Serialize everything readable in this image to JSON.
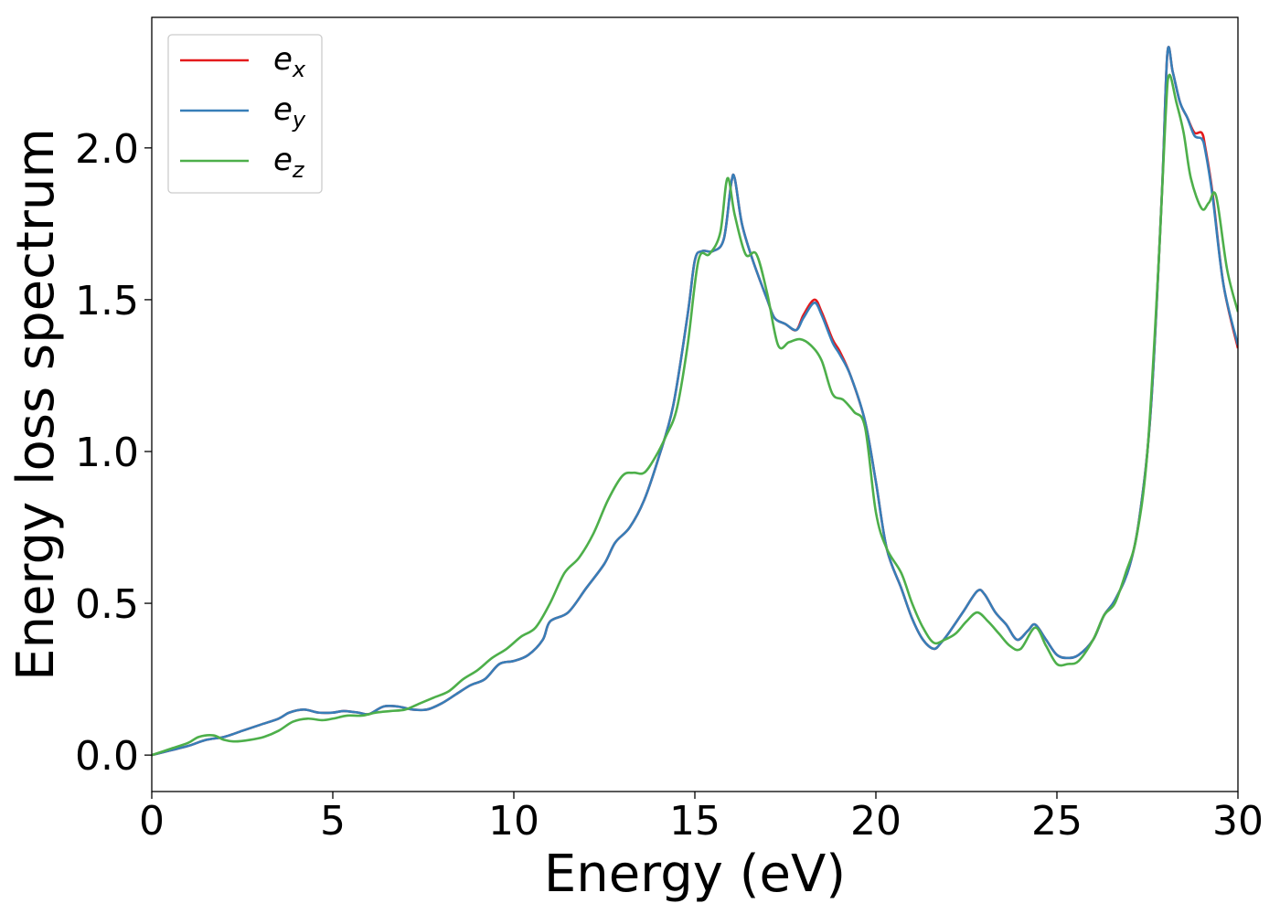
{
  "chart_data": {
    "type": "line",
    "title": "",
    "xlabel": "Energy (eV)",
    "ylabel": "Energy loss spectrum",
    "xlim": [
      0,
      30
    ],
    "ylim": [
      -0.12,
      2.43
    ],
    "xticks": [
      0,
      5,
      10,
      15,
      20,
      25,
      30
    ],
    "xtick_labels": [
      "0",
      "5",
      "10",
      "15",
      "20",
      "25",
      "30"
    ],
    "yticks": [
      0.0,
      0.5,
      1.0,
      1.5,
      2.0
    ],
    "ytick_labels": [
      "0.0",
      "0.5",
      "1.0",
      "1.5",
      "2.0"
    ],
    "grid": false,
    "legend_position": "top-left",
    "series": [
      {
        "name": "e_x",
        "legend_base": "e",
        "legend_sub": "x",
        "color": "#e41a1c",
        "x": [
          0,
          0.5,
          1,
          1.5,
          2,
          2.5,
          3,
          3.5,
          3.8,
          4.2,
          4.6,
          5,
          5.3,
          5.7,
          6,
          6.4,
          6.8,
          7.2,
          7.6,
          8,
          8.4,
          8.8,
          9.2,
          9.6,
          10,
          10.4,
          10.8,
          11,
          11.5,
          12,
          12.5,
          12.8,
          13.2,
          13.6,
          14,
          14.4,
          14.8,
          15,
          15.2,
          15.5,
          15.8,
          16,
          16.1,
          16.3,
          16.6,
          17,
          17.2,
          17.5,
          17.8,
          18,
          18.3,
          18.5,
          18.8,
          19,
          19.3,
          19.7,
          20,
          20.3,
          20.7,
          21,
          21.3,
          21.6,
          21.8,
          22,
          22.4,
          22.8,
          23,
          23.3,
          23.6,
          23.9,
          24.2,
          24.4,
          24.7,
          25,
          25.3,
          25.6,
          26,
          26.3,
          26.6,
          27,
          27.3,
          27.6,
          27.9,
          28.05,
          28.2,
          28.4,
          28.6,
          28.8,
          29,
          29.1,
          29.3,
          29.6,
          30
        ],
        "y": [
          0,
          0.015,
          0.03,
          0.05,
          0.06,
          0.08,
          0.1,
          0.12,
          0.14,
          0.15,
          0.14,
          0.14,
          0.145,
          0.14,
          0.135,
          0.16,
          0.16,
          0.15,
          0.15,
          0.17,
          0.2,
          0.23,
          0.25,
          0.3,
          0.31,
          0.33,
          0.38,
          0.44,
          0.47,
          0.55,
          0.63,
          0.7,
          0.75,
          0.84,
          0.98,
          1.15,
          1.45,
          1.63,
          1.66,
          1.66,
          1.7,
          1.88,
          1.9,
          1.75,
          1.63,
          1.5,
          1.44,
          1.42,
          1.4,
          1.45,
          1.5,
          1.46,
          1.37,
          1.33,
          1.25,
          1.1,
          0.9,
          0.68,
          0.55,
          0.45,
          0.38,
          0.35,
          0.37,
          0.4,
          0.47,
          0.54,
          0.53,
          0.47,
          0.43,
          0.38,
          0.41,
          0.43,
          0.38,
          0.33,
          0.32,
          0.33,
          0.38,
          0.46,
          0.51,
          0.62,
          0.8,
          1.15,
          1.85,
          2.31,
          2.25,
          2.15,
          2.1,
          2.05,
          2.05,
          2.0,
          1.85,
          1.55,
          1.34
        ]
      },
      {
        "name": "e_y",
        "legend_base": "e",
        "legend_sub": "y",
        "color": "#377eb8",
        "x": [
          0,
          0.5,
          1,
          1.5,
          2,
          2.5,
          3,
          3.5,
          3.8,
          4.2,
          4.6,
          5,
          5.3,
          5.7,
          6,
          6.4,
          6.8,
          7.2,
          7.6,
          8,
          8.4,
          8.8,
          9.2,
          9.6,
          10,
          10.4,
          10.8,
          11,
          11.5,
          12,
          12.5,
          12.8,
          13.2,
          13.6,
          14,
          14.4,
          14.8,
          15,
          15.2,
          15.5,
          15.8,
          16,
          16.1,
          16.3,
          16.6,
          17,
          17.2,
          17.5,
          17.8,
          18,
          18.3,
          18.5,
          18.8,
          19,
          19.3,
          19.7,
          20,
          20.3,
          20.7,
          21,
          21.3,
          21.6,
          21.8,
          22,
          22.4,
          22.8,
          23,
          23.3,
          23.6,
          23.9,
          24.2,
          24.4,
          24.7,
          25,
          25.3,
          25.6,
          26,
          26.3,
          26.6,
          27,
          27.3,
          27.6,
          27.9,
          28.05,
          28.2,
          28.4,
          28.6,
          28.8,
          29,
          29.1,
          29.3,
          29.6,
          30
        ],
        "y": [
          0,
          0.015,
          0.03,
          0.05,
          0.06,
          0.08,
          0.1,
          0.12,
          0.14,
          0.15,
          0.14,
          0.14,
          0.145,
          0.14,
          0.135,
          0.16,
          0.16,
          0.15,
          0.15,
          0.17,
          0.2,
          0.23,
          0.25,
          0.3,
          0.31,
          0.33,
          0.38,
          0.44,
          0.47,
          0.55,
          0.63,
          0.7,
          0.75,
          0.84,
          0.98,
          1.15,
          1.45,
          1.63,
          1.66,
          1.66,
          1.7,
          1.88,
          1.9,
          1.75,
          1.63,
          1.5,
          1.44,
          1.42,
          1.4,
          1.44,
          1.49,
          1.45,
          1.36,
          1.32,
          1.25,
          1.1,
          0.9,
          0.68,
          0.55,
          0.45,
          0.38,
          0.35,
          0.37,
          0.4,
          0.47,
          0.54,
          0.53,
          0.47,
          0.43,
          0.38,
          0.41,
          0.43,
          0.38,
          0.33,
          0.32,
          0.33,
          0.38,
          0.46,
          0.51,
          0.62,
          0.8,
          1.15,
          1.85,
          2.31,
          2.25,
          2.15,
          2.1,
          2.04,
          2.03,
          1.99,
          1.84,
          1.55,
          1.35
        ]
      },
      {
        "name": "e_z",
        "legend_base": "e",
        "legend_sub": "z",
        "color": "#4daf4a",
        "x": [
          0,
          0.5,
          1,
          1.3,
          1.7,
          2,
          2.3,
          2.7,
          3.1,
          3.5,
          3.9,
          4.3,
          4.7,
          5,
          5.4,
          5.8,
          6.2,
          6.6,
          7,
          7.4,
          7.8,
          8.2,
          8.6,
          9,
          9.4,
          9.8,
          10.2,
          10.6,
          11,
          11.4,
          11.8,
          12.2,
          12.6,
          13,
          13.3,
          13.6,
          13.9,
          14.2,
          14.5,
          14.8,
          15.1,
          15.4,
          15.7,
          15.9,
          16.1,
          16.4,
          16.7,
          17,
          17.3,
          17.6,
          17.9,
          18.2,
          18.5,
          18.8,
          19.1,
          19.4,
          19.7,
          20,
          20.3,
          20.7,
          21,
          21.3,
          21.6,
          21.9,
          22.2,
          22.5,
          22.8,
          23.1,
          23.4,
          23.7,
          24,
          24.4,
          24.7,
          25,
          25.3,
          25.6,
          26,
          26.3,
          26.6,
          26.9,
          27.2,
          27.5,
          27.8,
          28,
          28.1,
          28.3,
          28.5,
          28.7,
          29,
          29.2,
          29.4,
          29.7,
          30
        ],
        "y": [
          0,
          0.02,
          0.04,
          0.06,
          0.065,
          0.05,
          0.045,
          0.05,
          0.06,
          0.08,
          0.11,
          0.12,
          0.115,
          0.12,
          0.13,
          0.13,
          0.14,
          0.145,
          0.15,
          0.17,
          0.19,
          0.21,
          0.25,
          0.28,
          0.32,
          0.35,
          0.39,
          0.42,
          0.5,
          0.6,
          0.65,
          0.73,
          0.84,
          0.92,
          0.93,
          0.93,
          0.98,
          1.05,
          1.14,
          1.35,
          1.63,
          1.65,
          1.72,
          1.9,
          1.78,
          1.65,
          1.65,
          1.52,
          1.35,
          1.36,
          1.37,
          1.35,
          1.3,
          1.19,
          1.17,
          1.13,
          1.08,
          0.8,
          0.68,
          0.6,
          0.5,
          0.42,
          0.37,
          0.38,
          0.4,
          0.44,
          0.47,
          0.44,
          0.4,
          0.36,
          0.35,
          0.42,
          0.36,
          0.3,
          0.3,
          0.31,
          0.38,
          0.46,
          0.5,
          0.6,
          0.72,
          1.0,
          1.6,
          2.1,
          2.24,
          2.15,
          2.05,
          1.9,
          1.8,
          1.82,
          1.84,
          1.6,
          1.46
        ]
      }
    ]
  }
}
